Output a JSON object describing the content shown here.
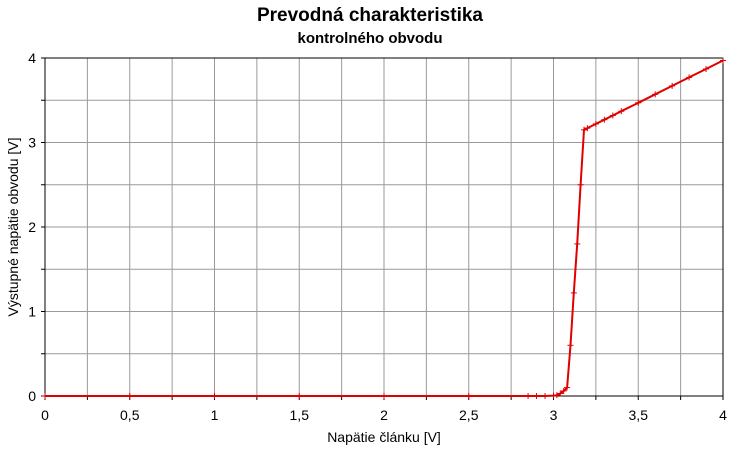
{
  "chart_data": {
    "type": "line",
    "title": "Prevodná charakteristika",
    "subtitle": "kontrolného obvodu",
    "xlabel": "Napätie článku [V]",
    "ylabel": "Výstupné napätie obvodu [V]",
    "xlim": [
      0,
      4
    ],
    "ylim": [
      0,
      4
    ],
    "x_ticks": [
      0,
      0.25,
      0.5,
      0.75,
      1,
      1.25,
      1.5,
      1.75,
      2,
      2.25,
      2.5,
      2.75,
      3,
      3.25,
      3.5,
      3.75,
      4
    ],
    "x_tick_labels": [
      "0",
      "0,5",
      "1",
      "1,5",
      "2",
      "2,5",
      "3",
      "3,5",
      "4"
    ],
    "x_tick_label_values": [
      0,
      0.5,
      1,
      1.5,
      2,
      2.5,
      3,
      3.5,
      4
    ],
    "y_ticks": [
      0,
      0.5,
      1,
      1.5,
      2,
      2.5,
      3,
      3.5,
      4
    ],
    "y_tick_labels": [
      "0",
      "1",
      "2",
      "3",
      "4"
    ],
    "y_tick_label_values": [
      0,
      1,
      2,
      3,
      4
    ],
    "grid": true,
    "legend": "none",
    "line_color": "#e00000",
    "series": [
      {
        "x": [
          0,
          0.5,
          1,
          1.5,
          2,
          2.5,
          2.85,
          2.9,
          2.95,
          3.0,
          3.02,
          3.04,
          3.06,
          3.08,
          3.1,
          3.12,
          3.14,
          3.16,
          3.18,
          3.2,
          3.25,
          3.3,
          3.35,
          3.4,
          3.5,
          3.6,
          3.7,
          3.8,
          3.9,
          4.0
        ],
        "y": [
          0,
          0,
          0,
          0,
          0,
          0,
          0,
          0,
          0,
          0.005,
          0.01,
          0.03,
          0.06,
          0.1,
          0.6,
          1.22,
          1.8,
          2.5,
          3.15,
          3.17,
          3.22,
          3.27,
          3.32,
          3.37,
          3.47,
          3.57,
          3.67,
          3.77,
          3.87,
          3.97
        ]
      }
    ]
  }
}
